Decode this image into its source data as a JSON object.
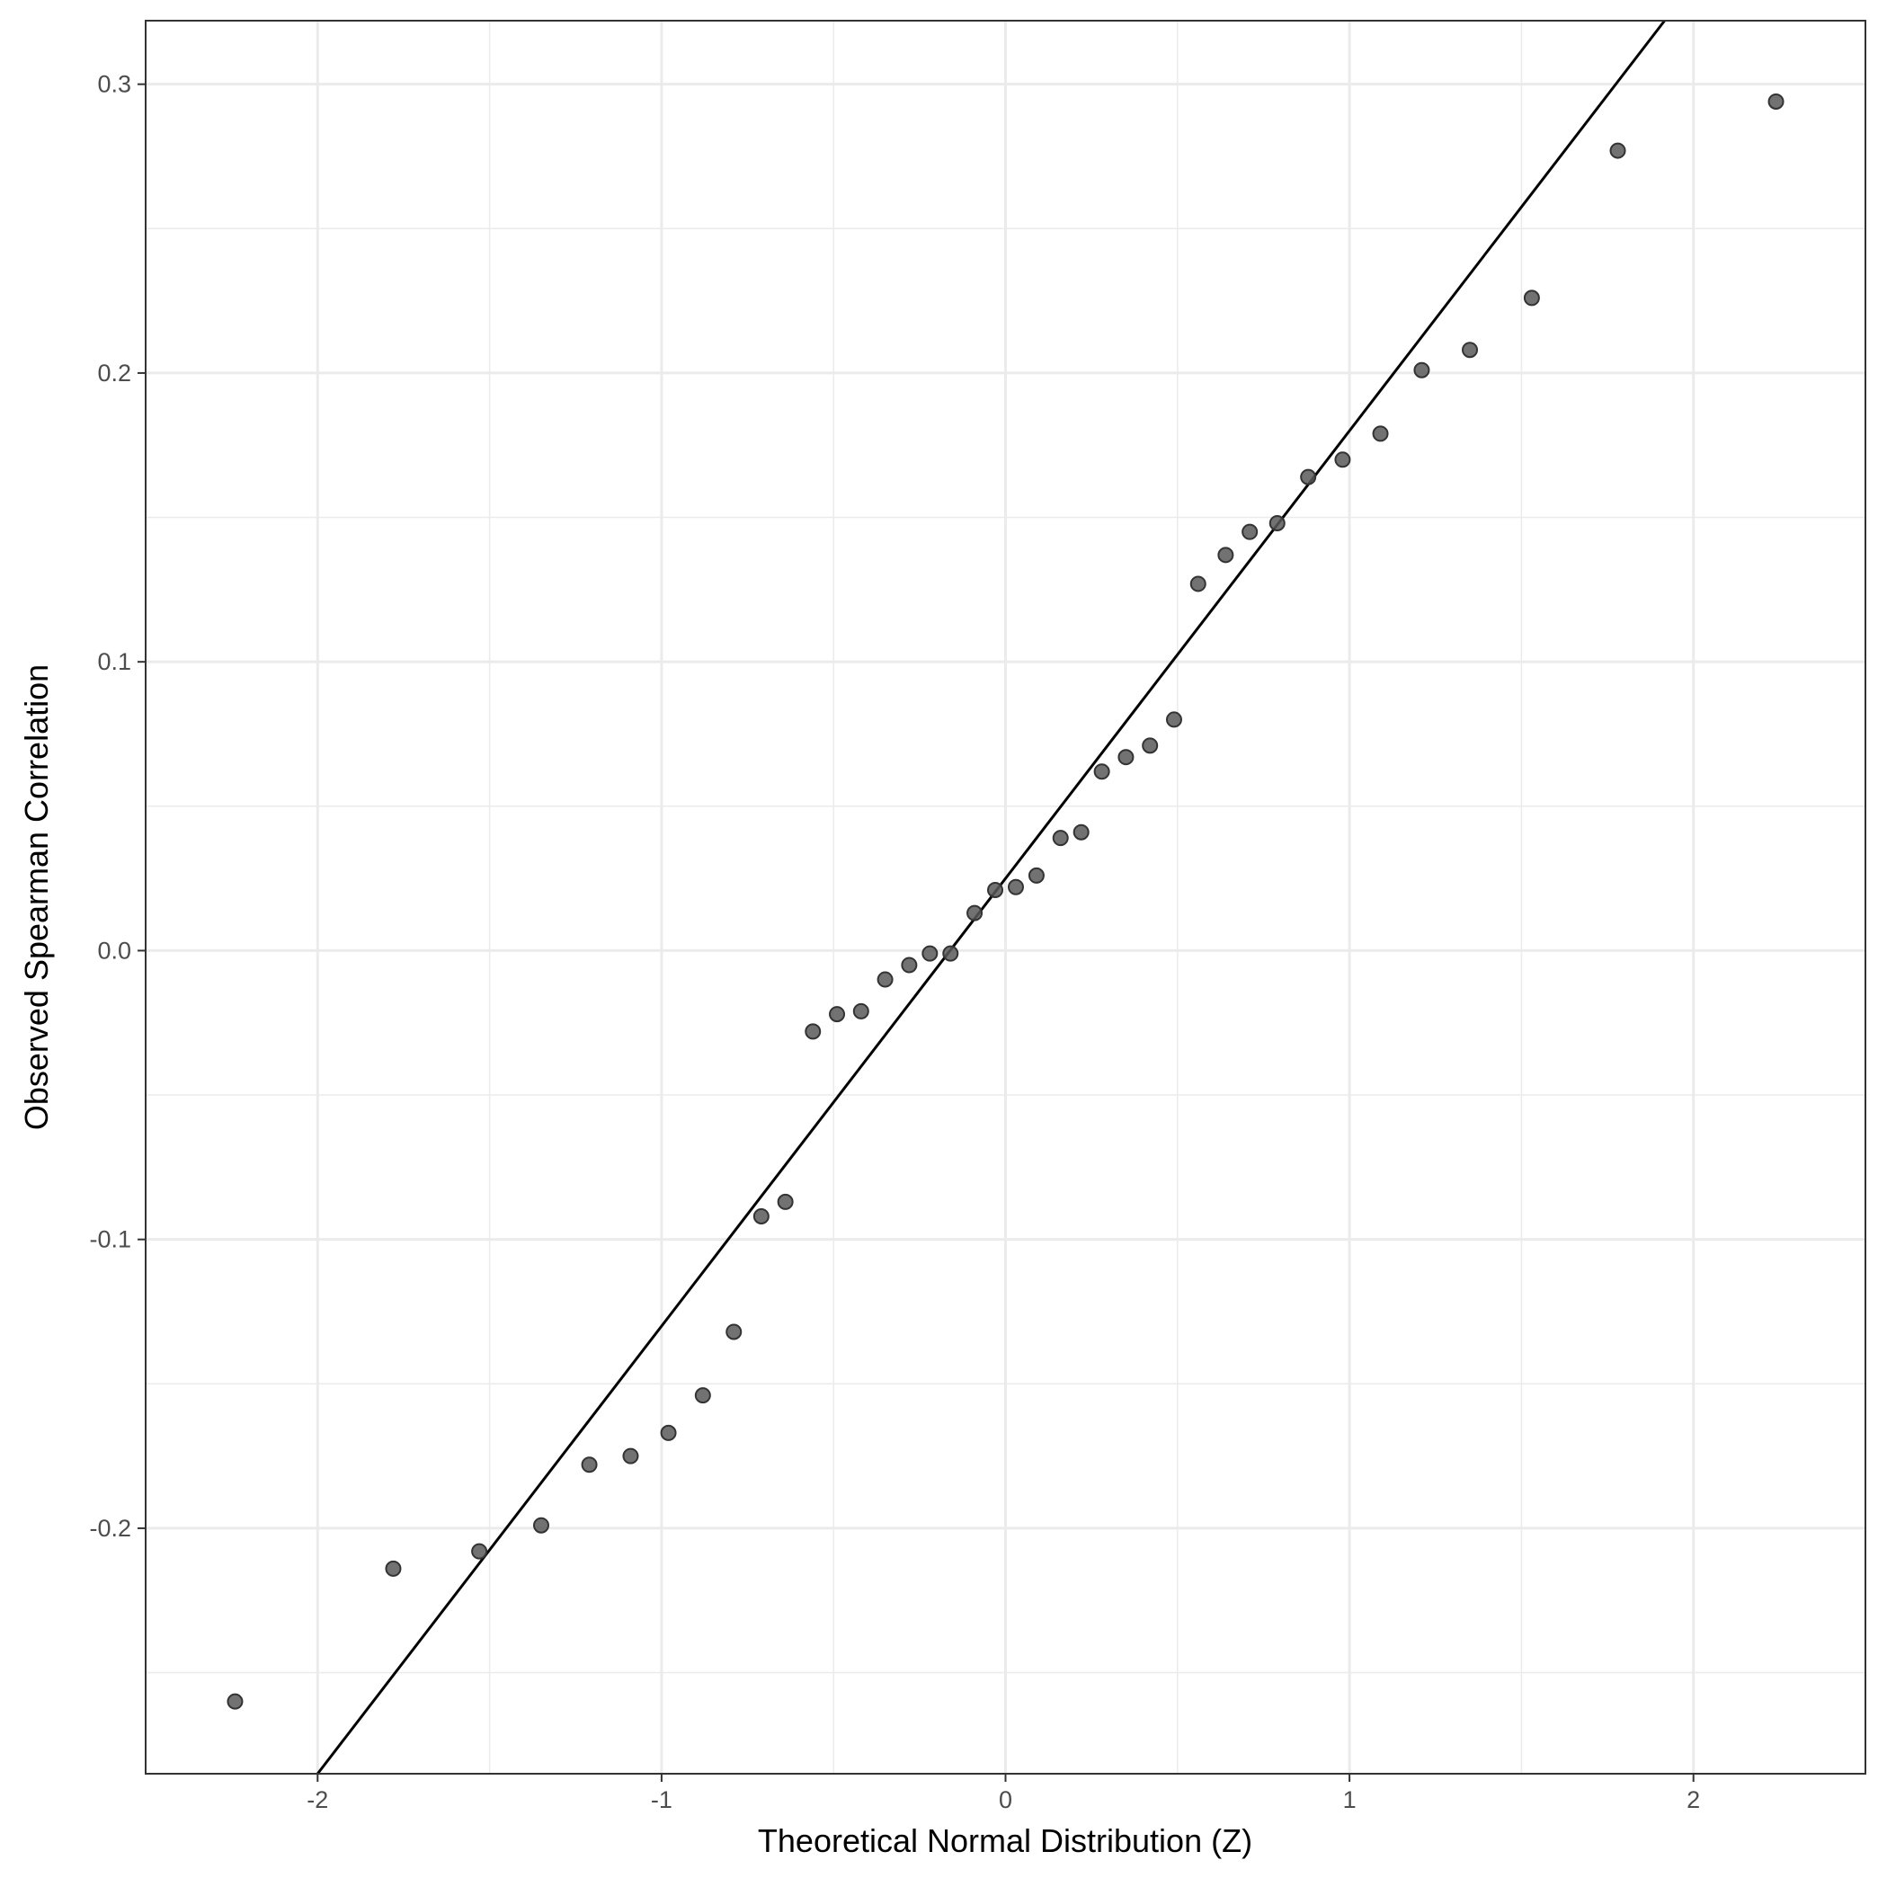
{
  "chart_data": {
    "type": "scatter",
    "title": "",
    "xlabel": "Theoretical Normal Distribution (Z)",
    "ylabel": "Observed Spearman Correlation",
    "xlim": [
      -2.5,
      2.5
    ],
    "ylim": [
      -0.285,
      0.322
    ],
    "x_ticks": [
      -2,
      -1,
      0,
      1,
      2
    ],
    "x_tick_labels": [
      "-2",
      "-1",
      "0",
      "1",
      "2"
    ],
    "y_ticks": [
      -0.2,
      -0.1,
      0.0,
      0.1,
      0.2,
      0.3
    ],
    "y_tick_labels": [
      "-0.2",
      "-0.1",
      "0.0",
      "0.1",
      "0.2",
      "0.3"
    ],
    "grid": true,
    "legend": "none",
    "colors": {
      "point": "#595959",
      "line": "#000000",
      "grid": "#ebebeb",
      "border": "#333333"
    },
    "reference_line": {
      "intercept": 0.025,
      "slope": 0.155
    },
    "points": [
      {
        "x": -2.24,
        "y": -0.26
      },
      {
        "x": -1.78,
        "y": -0.214
      },
      {
        "x": -1.53,
        "y": -0.208
      },
      {
        "x": -1.35,
        "y": -0.199
      },
      {
        "x": -1.21,
        "y": -0.178
      },
      {
        "x": -1.09,
        "y": -0.175
      },
      {
        "x": -0.98,
        "y": -0.167
      },
      {
        "x": -0.88,
        "y": -0.154
      },
      {
        "x": -0.79,
        "y": -0.132
      },
      {
        "x": -0.71,
        "y": -0.092
      },
      {
        "x": -0.64,
        "y": -0.087
      },
      {
        "x": -0.56,
        "y": -0.028
      },
      {
        "x": -0.49,
        "y": -0.022
      },
      {
        "x": -0.42,
        "y": -0.021
      },
      {
        "x": -0.35,
        "y": -0.01
      },
      {
        "x": -0.28,
        "y": -0.005
      },
      {
        "x": -0.22,
        "y": -0.001
      },
      {
        "x": -0.16,
        "y": -0.001
      },
      {
        "x": -0.09,
        "y": 0.013
      },
      {
        "x": -0.03,
        "y": 0.021
      },
      {
        "x": 0.03,
        "y": 0.022
      },
      {
        "x": 0.09,
        "y": 0.026
      },
      {
        "x": 0.16,
        "y": 0.039
      },
      {
        "x": 0.22,
        "y": 0.041
      },
      {
        "x": 0.28,
        "y": 0.062
      },
      {
        "x": 0.35,
        "y": 0.067
      },
      {
        "x": 0.42,
        "y": 0.071
      },
      {
        "x": 0.49,
        "y": 0.08
      },
      {
        "x": 0.56,
        "y": 0.127
      },
      {
        "x": 0.64,
        "y": 0.137
      },
      {
        "x": 0.71,
        "y": 0.145
      },
      {
        "x": 0.79,
        "y": 0.148
      },
      {
        "x": 0.88,
        "y": 0.164
      },
      {
        "x": 0.98,
        "y": 0.17
      },
      {
        "x": 1.09,
        "y": 0.179
      },
      {
        "x": 1.21,
        "y": 0.201
      },
      {
        "x": 1.35,
        "y": 0.208
      },
      {
        "x": 1.53,
        "y": 0.226
      },
      {
        "x": 1.78,
        "y": 0.277
      },
      {
        "x": 2.24,
        "y": 0.294
      }
    ]
  }
}
